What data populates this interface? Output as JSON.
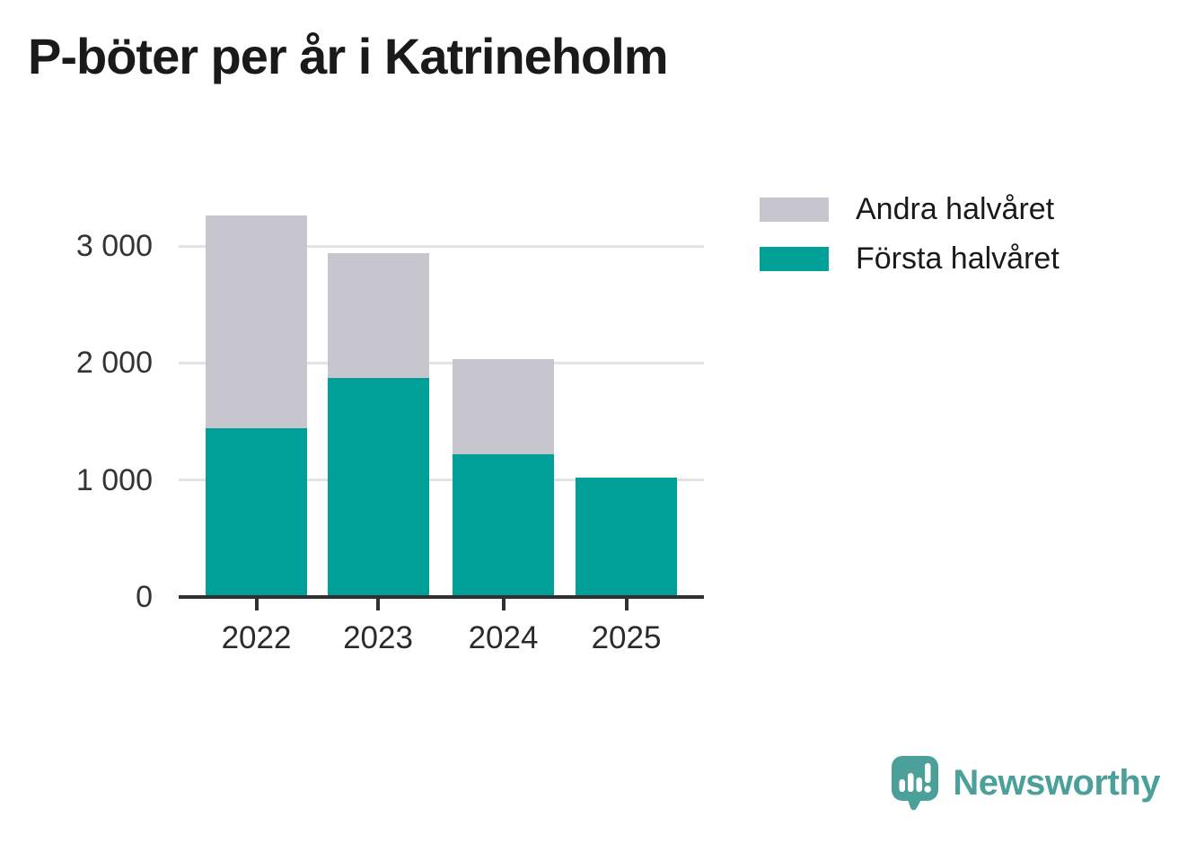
{
  "title": "P-böter per år i Katrineholm",
  "legend": {
    "items": [
      {
        "label": "Andra halvåret",
        "color": "#C7C5CD"
      },
      {
        "label": "Första halvåret",
        "color": "#00A099"
      }
    ]
  },
  "chart_data": {
    "type": "bar",
    "stacked": true,
    "title": "P-böter per år i Katrineholm",
    "categories": [
      "2022",
      "2023",
      "2024",
      "2025"
    ],
    "series": [
      {
        "name": "Första halvåret",
        "color": "#00A099",
        "values": [
          1440,
          1870,
          1220,
          1020
        ]
      },
      {
        "name": "Andra halvåret",
        "color": "#C7C5CD",
        "values": [
          1820,
          1070,
          810,
          0
        ]
      }
    ],
    "stack_order_bottom_to_top": [
      "Första halvåret",
      "Andra halvåret"
    ],
    "totals": [
      3260,
      2940,
      2030,
      1020
    ],
    "xlabel": "",
    "ylabel": "",
    "ylim": [
      0,
      3300
    ],
    "yticks": [
      0,
      1000,
      2000,
      3000
    ],
    "ytick_labels": [
      "0",
      "1 000",
      "2 000",
      "3 000"
    ],
    "grid": "horizontal",
    "legend_position": "top-right"
  },
  "branding": {
    "wordmark": "Newsworthy",
    "logo_icon": "newsworthy-speech-bubble-bar-chart-icon",
    "color": "#4BA09A"
  },
  "colors": {
    "axis": "#303030",
    "grid": "#E3E3E3",
    "tick_text": "#333333",
    "title_text": "#1A1A1A",
    "background": "#FFFFFF"
  }
}
